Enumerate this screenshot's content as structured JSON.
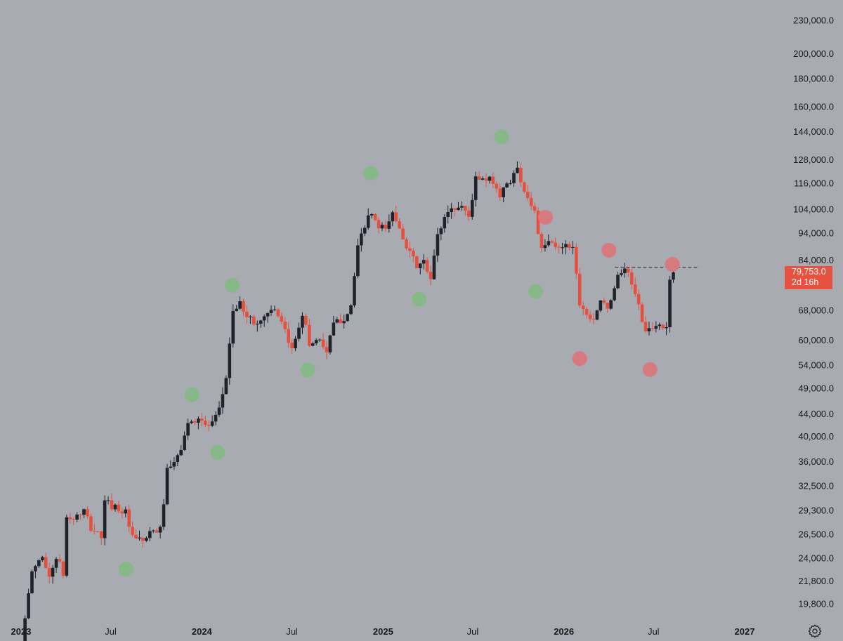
{
  "colors": {
    "background": "#a9abb3",
    "up_candle": "#1e2229",
    "down_candle": "#e4503d",
    "green_marker": "#86b888",
    "red_marker": "#d77a80",
    "price_badge": "#e8503f",
    "dashed_line": "#1e2229"
  },
  "price_badge": {
    "price": "79,753.0",
    "countdown": "2d 16h"
  },
  "icons": {
    "settings": "gear-icon"
  },
  "chart_data": {
    "type": "candlestick",
    "title": "",
    "xlabel": "",
    "ylabel": "",
    "yscale": "log",
    "ylim": [
      18500,
      245000
    ],
    "xlim": [
      "2023-01-01",
      "2027-01-15"
    ],
    "y_ticks": [
      {
        "value": 230000,
        "label": "230,000.0"
      },
      {
        "value": 200000,
        "label": "200,000.0"
      },
      {
        "value": 180000,
        "label": "180,000.0"
      },
      {
        "value": 160000,
        "label": "160,000.0"
      },
      {
        "value": 144000,
        "label": "144,000.0"
      },
      {
        "value": 128000,
        "label": "128,000.0"
      },
      {
        "value": 116000,
        "label": "116,000.0"
      },
      {
        "value": 104000,
        "label": "104,000.0"
      },
      {
        "value": 94000,
        "label": "94,000.0"
      },
      {
        "value": 84000,
        "label": "84,000.0"
      },
      {
        "value": 68000,
        "label": "68,000.0"
      },
      {
        "value": 60000,
        "label": "60,000.0"
      },
      {
        "value": 54000,
        "label": "54,000.0"
      },
      {
        "value": 49000,
        "label": "49,000.0"
      },
      {
        "value": 44000,
        "label": "44,000.0"
      },
      {
        "value": 40000,
        "label": "40,000.0"
      },
      {
        "value": 36000,
        "label": "36,000.0"
      },
      {
        "value": 32500,
        "label": "32,500.0"
      },
      {
        "value": 29300,
        "label": "29,300.0"
      },
      {
        "value": 26500,
        "label": "26,500.0"
      },
      {
        "value": 24000,
        "label": "24,000.0"
      },
      {
        "value": 21800,
        "label": "21,800.0"
      },
      {
        "value": 19800,
        "label": "19,800.0"
      }
    ],
    "x_ticks": [
      {
        "date": "2023-01-01",
        "label": "2023",
        "bold": true
      },
      {
        "date": "2023-07-01",
        "label": "Jul",
        "bold": false
      },
      {
        "date": "2024-01-01",
        "label": "2024",
        "bold": true
      },
      {
        "date": "2024-07-01",
        "label": "Jul",
        "bold": false
      },
      {
        "date": "2025-01-01",
        "label": "2025",
        "bold": true
      },
      {
        "date": "2025-07-01",
        "label": "Jul",
        "bold": false
      },
      {
        "date": "2026-01-01",
        "label": "2026",
        "bold": true
      },
      {
        "date": "2026-07-01",
        "label": "Jul",
        "bold": false
      },
      {
        "date": "2027-01-01",
        "label": "2027",
        "bold": true
      }
    ],
    "candle_anchors": [
      [
        "2023-01-02",
        16600
      ],
      [
        "2023-01-23",
        22700
      ],
      [
        "2023-02-13",
        24300
      ],
      [
        "2023-02-27",
        22000
      ],
      [
        "2023-03-13",
        24200
      ],
      [
        "2023-03-27",
        22400
      ],
      [
        "2023-04-03",
        28400
      ],
      [
        "2023-04-17",
        28300
      ],
      [
        "2023-05-08",
        29200
      ],
      [
        "2023-05-22",
        27200
      ],
      [
        "2023-06-12",
        26300
      ],
      [
        "2023-06-19",
        30300
      ],
      [
        "2023-07-10",
        29800
      ],
      [
        "2023-07-31",
        29000
      ],
      [
        "2023-08-14",
        26000
      ],
      [
        "2023-09-04",
        25800
      ],
      [
        "2023-09-25",
        26800
      ],
      [
        "2023-10-09",
        27000
      ],
      [
        "2023-10-16",
        30500
      ],
      [
        "2023-10-23",
        34500
      ],
      [
        "2023-11-13",
        36500
      ],
      [
        "2023-12-04",
        42000
      ],
      [
        "2023-12-25",
        43500
      ],
      [
        "2024-01-08",
        41800
      ],
      [
        "2024-01-22",
        42000
      ],
      [
        "2024-02-05",
        44500
      ],
      [
        "2024-02-19",
        51500
      ],
      [
        "2024-03-04",
        68000
      ],
      [
        "2024-03-18",
        69500
      ],
      [
        "2024-04-01",
        67000
      ],
      [
        "2024-04-15",
        64000
      ],
      [
        "2024-05-06",
        66000
      ],
      [
        "2024-05-20",
        69000
      ],
      [
        "2024-06-10",
        64000
      ],
      [
        "2024-07-01",
        57500
      ],
      [
        "2024-07-22",
        67500
      ],
      [
        "2024-08-05",
        59000
      ],
      [
        "2024-08-26",
        60500
      ],
      [
        "2024-09-09",
        57000
      ],
      [
        "2024-09-23",
        64000
      ],
      [
        "2024-10-14",
        66000
      ],
      [
        "2024-10-28",
        69500
      ],
      [
        "2024-11-11",
        88000
      ],
      [
        "2024-11-25",
        97500
      ],
      [
        "2024-12-09",
        102000
      ],
      [
        "2024-12-23",
        95500
      ],
      [
        "2025-01-06",
        96000
      ],
      [
        "2025-01-20",
        102000
      ],
      [
        "2025-02-03",
        97000
      ],
      [
        "2025-02-24",
        86000
      ],
      [
        "2025-03-10",
        82000
      ],
      [
        "2025-03-24",
        83000
      ],
      [
        "2025-04-07",
        77000
      ],
      [
        "2025-04-21",
        93500
      ],
      [
        "2025-05-12",
        103500
      ],
      [
        "2025-05-26",
        104500
      ],
      [
        "2025-06-09",
        105500
      ],
      [
        "2025-06-23",
        101000
      ],
      [
        "2025-07-07",
        118000
      ],
      [
        "2025-07-28",
        117000
      ],
      [
        "2025-08-11",
        117500
      ],
      [
        "2025-08-25",
        110000
      ],
      [
        "2025-09-08",
        115500
      ],
      [
        "2025-09-29",
        123000
      ],
      [
        "2025-10-13",
        113000
      ],
      [
        "2025-11-03",
        103000
      ],
      [
        "2025-11-17",
        87000
      ],
      [
        "2025-12-01",
        90500
      ],
      [
        "2025-12-22",
        88000
      ],
      [
        "2026-01-05",
        90500
      ],
      [
        "2026-01-19",
        88500
      ],
      [
        "2026-02-02",
        70500
      ],
      [
        "2026-02-16",
        67000
      ],
      [
        "2026-03-02",
        66000
      ],
      [
        "2026-03-16",
        71000
      ],
      [
        "2026-03-30",
        67500
      ],
      [
        "2026-04-13",
        75500
      ],
      [
        "2026-04-27",
        80500
      ],
      [
        "2026-05-11",
        79000
      ],
      [
        "2026-05-25",
        73500
      ],
      [
        "2026-06-08",
        64500
      ],
      [
        "2026-06-22",
        62000
      ],
      [
        "2026-07-13",
        64000
      ],
      [
        "2026-07-27",
        63000
      ],
      [
        "2026-08-03",
        78000
      ],
      [
        "2026-08-10",
        79753
      ]
    ],
    "markers": [
      {
        "color": "green",
        "date": "2023-08-01",
        "value": 22900
      },
      {
        "color": "green",
        "date": "2023-12-12",
        "value": 47700
      },
      {
        "color": "green",
        "date": "2024-02-02",
        "value": 37400
      },
      {
        "color": "green",
        "date": "2024-03-02",
        "value": 75500
      },
      {
        "color": "green",
        "date": "2024-08-02",
        "value": 52900
      },
      {
        "color": "green",
        "date": "2024-12-07",
        "value": 121000
      },
      {
        "color": "green",
        "date": "2025-03-15",
        "value": 71200
      },
      {
        "color": "green",
        "date": "2025-08-28",
        "value": 141000
      },
      {
        "color": "green",
        "date": "2025-11-05",
        "value": 73600
      },
      {
        "color": "red",
        "date": "2025-11-25",
        "value": 100500
      },
      {
        "color": "red",
        "date": "2026-02-02",
        "value": 55500
      },
      {
        "color": "red",
        "date": "2026-04-02",
        "value": 87500
      },
      {
        "color": "red",
        "date": "2026-06-24",
        "value": 53000
      },
      {
        "color": "red",
        "date": "2026-08-08",
        "value": 82500
      }
    ],
    "reference_line": {
      "value": 81500,
      "from": "2026-04-14",
      "to": "2026-09-30",
      "style": "dashed"
    },
    "last_price": 79753
  }
}
